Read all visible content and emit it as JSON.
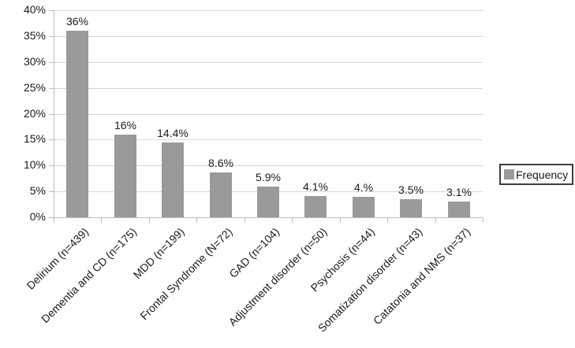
{
  "chart_data": {
    "type": "bar",
    "title": "",
    "xlabel": "",
    "ylabel": "",
    "categories": [
      "Delirium (n=439)",
      "Dementia and CD (n=175)",
      "MDD (n=199)",
      "Frontal Syndrome (N=72)",
      "GAD (n=104)",
      "Adjustment disorder (n=50)",
      "Psychosis (n=44)",
      "Somatization disorder (n=43)",
      "Catatonia and NMS (n=37)"
    ],
    "values": [
      36,
      16,
      14.4,
      8.6,
      5.9,
      4.1,
      4.0,
      3.5,
      3.1
    ],
    "data_labels": [
      "36%",
      "16%",
      "14.4%",
      "8.6%",
      "5.9%",
      "4.1%",
      "4.%",
      "3.5%",
      "3.1%"
    ],
    "ylim": [
      0,
      40
    ],
    "y_tick_step": 5,
    "y_tick_labels": [
      "0%",
      "5%",
      "10%",
      "15%",
      "20%",
      "25%",
      "30%",
      "35%",
      "40%"
    ],
    "grid": true,
    "legend": {
      "label": "Frequency",
      "position": "right"
    },
    "colors": {
      "bar": "#9a9a9a",
      "gridline": "#d7d7d7",
      "axis": "#bdbdbd",
      "text": "#1a1a1a",
      "legend_border": "#3d3d3d",
      "background": "#ffffff"
    }
  }
}
